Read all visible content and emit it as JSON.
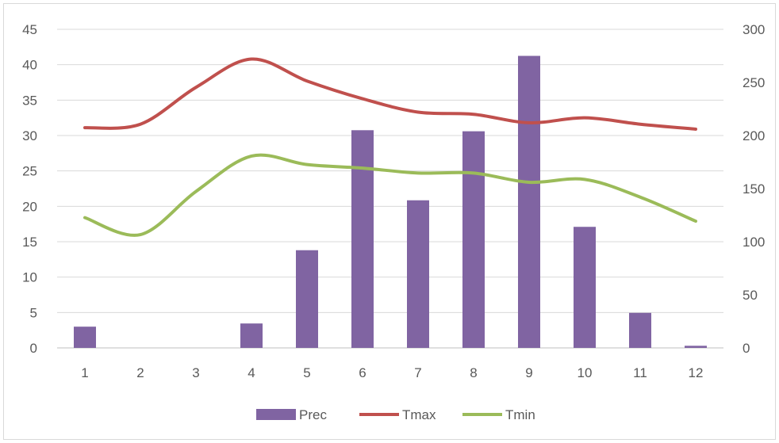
{
  "chart_data": {
    "type": "bar",
    "title": "",
    "xlabel": "",
    "ylabel": "",
    "categories": [
      "1",
      "2",
      "3",
      "4",
      "5",
      "6",
      "7",
      "8",
      "9",
      "10",
      "11",
      "12"
    ],
    "series": [
      {
        "name": "Prec",
        "type": "bar",
        "axis": "right",
        "color": "#8064a2",
        "values": [
          20,
          0,
          0,
          23,
          92,
          205,
          139,
          204,
          275,
          114,
          33,
          2
        ]
      },
      {
        "name": "Tmax",
        "type": "line",
        "axis": "left",
        "color": "#c0504d",
        "values": [
          31.1,
          31.6,
          36.8,
          40.8,
          37.7,
          35.2,
          33.3,
          33.0,
          31.8,
          32.5,
          31.6,
          30.9
        ]
      },
      {
        "name": "Tmin",
        "type": "line",
        "axis": "left",
        "color": "#9bbb59",
        "values": [
          18.4,
          16.0,
          22.1,
          27.1,
          25.9,
          25.4,
          24.7,
          24.7,
          23.4,
          23.8,
          21.3,
          17.9
        ]
      }
    ],
    "y_left": {
      "lim": [
        0,
        45
      ],
      "ticks": [
        "0",
        "5",
        "10",
        "15",
        "20",
        "25",
        "30",
        "35",
        "40",
        "45"
      ]
    },
    "y_right": {
      "lim": [
        0,
        300
      ],
      "ticks": [
        "0",
        "50",
        "100",
        "150",
        "200",
        "250",
        "300"
      ]
    },
    "grid": true,
    "legend_position": "bottom"
  }
}
